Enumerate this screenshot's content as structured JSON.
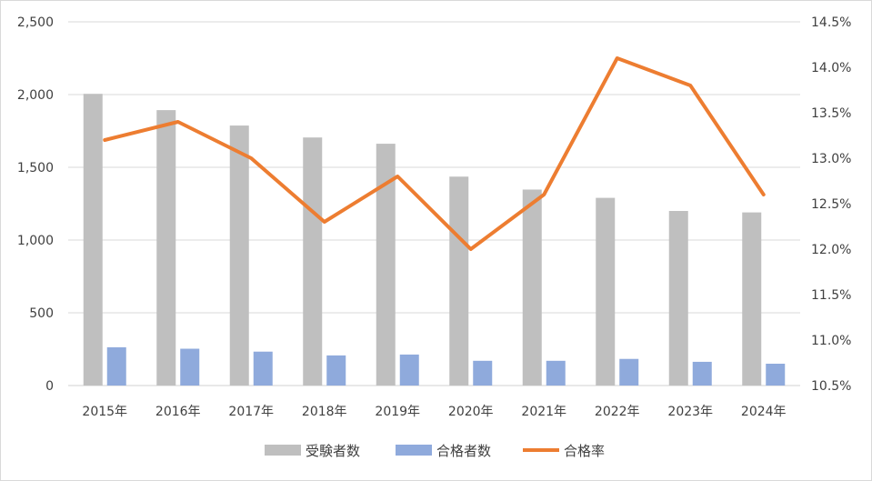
{
  "chart_data": {
    "type": "bar+line",
    "title": "",
    "categories": [
      "2015年",
      "2016年",
      "2017年",
      "2018年",
      "2019年",
      "2020年",
      "2021年",
      "2022年",
      "2023年",
      "2024年"
    ],
    "series": [
      {
        "name": "受験者数",
        "type": "bar",
        "axis": "left",
        "color": "#bfbfbf",
        "values": [
          2005,
          1893,
          1787,
          1705,
          1662,
          1436,
          1347,
          1290,
          1200,
          1190
        ]
      },
      {
        "name": "合格者数",
        "type": "bar",
        "axis": "left",
        "color": "#8faadc",
        "values": [
          263,
          253,
          233,
          207,
          213,
          170,
          170,
          183,
          163,
          150
        ]
      },
      {
        "name": "合格率",
        "type": "line",
        "axis": "right",
        "color": "#ed7d31",
        "values": [
          13.2,
          13.4,
          13.0,
          12.3,
          12.8,
          12.0,
          12.6,
          14.1,
          13.8,
          12.6
        ]
      }
    ],
    "y_left": {
      "min": 0,
      "max": 2500,
      "step": 500,
      "tick_labels": [
        "0",
        "500",
        "1,000",
        "1,500",
        "2,000",
        "2,500"
      ]
    },
    "y_right": {
      "min": 10.5,
      "max": 14.5,
      "step": 0.5,
      "tick_labels": [
        "10.5%",
        "11.0%",
        "11.5%",
        "12.0%",
        "12.5%",
        "13.0%",
        "13.5%",
        "14.0%",
        "14.5%"
      ]
    },
    "grid": true,
    "legend_position": "bottom"
  }
}
